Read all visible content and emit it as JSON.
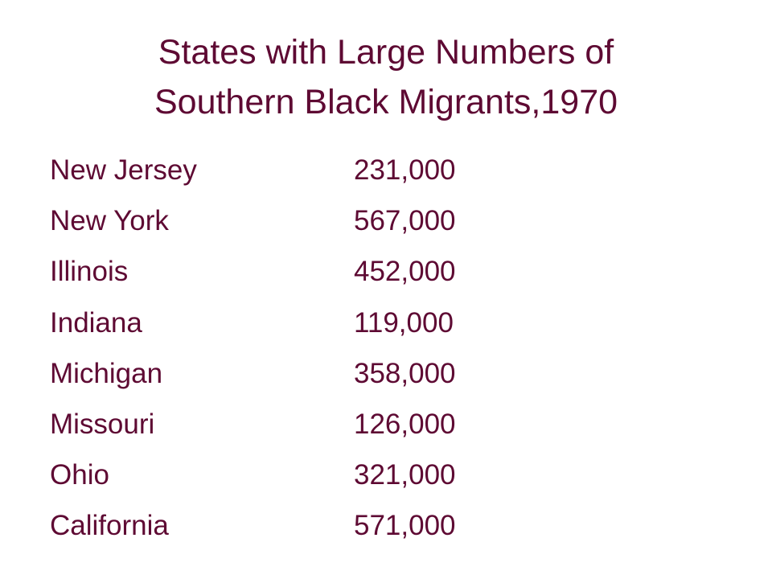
{
  "title_lines": [
    "States with Large Numbers of",
    "Southern Black Migrants,1970"
  ],
  "table": {
    "rows": [
      [
        "New Jersey",
        "231,000"
      ],
      [
        "New York",
        "567,000"
      ],
      [
        "Illinois",
        "452,000"
      ],
      [
        "Indiana",
        "119,000"
      ],
      [
        "Michigan",
        "358,000"
      ],
      [
        "Missouri",
        "126,000"
      ],
      [
        "Ohio",
        "321,000"
      ],
      [
        "California",
        "571,000"
      ]
    ]
  }
}
